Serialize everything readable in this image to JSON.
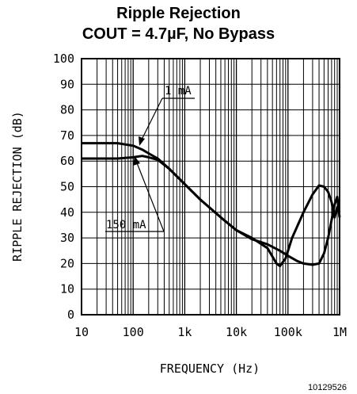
{
  "chart_data": {
    "type": "line",
    "title": "Ripple Rejection",
    "subtitle": "COUT = 4.7µF, No Bypass",
    "xlabel": "FREQUENCY (Hz)",
    "ylabel": "RIPPLE REJECTION (dB)",
    "x_scale": "log",
    "xlim": [
      10,
      1000000
    ],
    "ylim": [
      0,
      100
    ],
    "x_ticks": [
      10,
      100,
      1000,
      10000,
      100000,
      1000000
    ],
    "x_tick_labels": [
      "10",
      "100",
      "1k",
      "10k",
      "100k",
      "1M"
    ],
    "y_ticks": [
      0,
      10,
      20,
      30,
      40,
      50,
      60,
      70,
      80,
      90,
      100
    ],
    "y_tick_labels": [
      "0",
      "10",
      "20",
      "30",
      "40",
      "50",
      "60",
      "70",
      "80",
      "90",
      "100"
    ],
    "grid": true,
    "series": [
      {
        "name": "1 mA",
        "points": [
          [
            10,
            67
          ],
          [
            50,
            67
          ],
          [
            100,
            66
          ],
          [
            150,
            64.5
          ],
          [
            200,
            63
          ],
          [
            300,
            61
          ],
          [
            500,
            57
          ],
          [
            1000,
            51
          ],
          [
            2000,
            45
          ],
          [
            5000,
            38
          ],
          [
            10000,
            33
          ],
          [
            20000,
            29.5
          ],
          [
            40000,
            27.5
          ],
          [
            70000,
            25
          ],
          [
            100000,
            23
          ],
          [
            150000,
            21
          ],
          [
            200000,
            20
          ],
          [
            300000,
            19.5
          ],
          [
            400000,
            20
          ],
          [
            500000,
            24
          ],
          [
            600000,
            30
          ],
          [
            700000,
            37
          ],
          [
            800000,
            43
          ],
          [
            900000,
            46
          ],
          [
            1000000,
            38
          ]
        ]
      },
      {
        "name": "150 mA",
        "points": [
          [
            10,
            61
          ],
          [
            50,
            61
          ],
          [
            100,
            61.5
          ],
          [
            150,
            62
          ],
          [
            200,
            61.5
          ],
          [
            300,
            60.5
          ],
          [
            500,
            57
          ],
          [
            1000,
            51
          ],
          [
            2000,
            45
          ],
          [
            5000,
            38
          ],
          [
            10000,
            33
          ],
          [
            20000,
            30
          ],
          [
            40000,
            26
          ],
          [
            60000,
            20
          ],
          [
            70000,
            19
          ],
          [
            90000,
            22
          ],
          [
            120000,
            30
          ],
          [
            200000,
            40
          ],
          [
            300000,
            47
          ],
          [
            400000,
            50.5
          ],
          [
            500000,
            50
          ],
          [
            600000,
            48
          ],
          [
            700000,
            44
          ],
          [
            800000,
            38
          ],
          [
            900000,
            42
          ],
          [
            1000000,
            40
          ]
        ]
      }
    ],
    "annotations": [
      "1 mA",
      "150 mA"
    ]
  },
  "figure_code": "10129526"
}
